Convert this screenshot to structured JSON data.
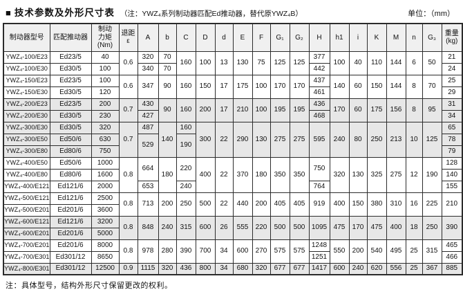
{
  "colors": {
    "border": "#2b2b2b",
    "header_bg": "#f0f0f0",
    "row_shade": "#e7e7e7",
    "text": "#111111",
    "page_bg": "#ffffff"
  },
  "header": {
    "bullet": "■",
    "title": "技术参数及外形尺寸表",
    "note": "（注：YWZ₄系列制动器匹配Ed推动器，替代原YWZ₄B）",
    "unit": "单位：（mm）"
  },
  "table": {
    "columns": [
      "制动器型号",
      "匹配推动器",
      "制动\n力矩\n(Nm)",
      "退距\nε",
      "A",
      "b",
      "C",
      "D",
      "d",
      "E",
      "F",
      "G₁",
      "G₂",
      "H",
      "h1",
      "i",
      "K",
      "M",
      "n",
      "G₃",
      "重量\n(kg)"
    ],
    "rows": [
      {
        "shaded": false,
        "cells": [
          "YWZ₄-100/E23",
          "Ed23/5",
          "40",
          {
            "v": "0.6",
            "rs": 2
          },
          "320",
          "70",
          {
            "v": "160",
            "rs": 2
          },
          {
            "v": "100",
            "rs": 2
          },
          {
            "v": "13",
            "rs": 2
          },
          {
            "v": "130",
            "rs": 2
          },
          {
            "v": "75",
            "rs": 2
          },
          {
            "v": "125",
            "rs": 2
          },
          {
            "v": "125",
            "rs": 2
          },
          "377",
          {
            "v": "100",
            "rs": 2
          },
          {
            "v": "40",
            "rs": 2
          },
          {
            "v": "110",
            "rs": 2
          },
          {
            "v": "144",
            "rs": 2
          },
          {
            "v": "6",
            "rs": 2
          },
          {
            "v": "50",
            "rs": 2
          },
          "21"
        ]
      },
      {
        "shaded": false,
        "cells": [
          "YWZ₄-100/E30",
          "Ed30/5",
          "100",
          "340",
          "70",
          "442",
          "24"
        ]
      },
      {
        "shaded": false,
        "cells": [
          "YWZ₄-150/E23",
          "Ed23/5",
          "100",
          {
            "v": "0.6",
            "rs": 2
          },
          {
            "v": "347",
            "rs": 2
          },
          {
            "v": "90",
            "rs": 2
          },
          {
            "v": "160",
            "rs": 2
          },
          {
            "v": "150",
            "rs": 2
          },
          {
            "v": "17",
            "rs": 2
          },
          {
            "v": "175",
            "rs": 2
          },
          {
            "v": "100",
            "rs": 2
          },
          {
            "v": "170",
            "rs": 2
          },
          {
            "v": "170",
            "rs": 2
          },
          "437",
          {
            "v": "140",
            "rs": 2
          },
          {
            "v": "60",
            "rs": 2
          },
          {
            "v": "150",
            "rs": 2
          },
          {
            "v": "144",
            "rs": 2
          },
          {
            "v": "8",
            "rs": 2
          },
          {
            "v": "70",
            "rs": 2
          },
          "25"
        ]
      },
      {
        "shaded": false,
        "cells": [
          "YWZ₄-150/E30",
          "Ed30/5",
          "120",
          "461",
          "29"
        ]
      },
      {
        "shaded": true,
        "cells": [
          "YWZ₄-200/E23",
          "Ed23/5",
          "200",
          {
            "v": "0.7",
            "rs": 2
          },
          "430",
          {
            "v": "90",
            "rs": 2
          },
          {
            "v": "160",
            "rs": 2
          },
          {
            "v": "200",
            "rs": 2
          },
          {
            "v": "17",
            "rs": 2
          },
          {
            "v": "210",
            "rs": 2
          },
          {
            "v": "100",
            "rs": 2
          },
          {
            "v": "195",
            "rs": 2
          },
          {
            "v": "195",
            "rs": 2
          },
          "436",
          {
            "v": "170",
            "rs": 2
          },
          {
            "v": "60",
            "rs": 2
          },
          {
            "v": "175",
            "rs": 2
          },
          {
            "v": "156",
            "rs": 2
          },
          {
            "v": "8",
            "rs": 2
          },
          {
            "v": "95",
            "rs": 2
          },
          "31"
        ]
      },
      {
        "shaded": true,
        "cells": [
          "YWZ₄-200/E30",
          "Ed30/5",
          "230",
          "427",
          "468",
          "34"
        ]
      },
      {
        "shaded": true,
        "cells": [
          "YWZ₄-300/E30",
          "Ed30/5",
          "320",
          {
            "v": "0.7",
            "rs": 3
          },
          "487",
          {
            "v": "140",
            "rs": 3
          },
          "160",
          {
            "v": "300",
            "rs": 3
          },
          {
            "v": "22",
            "rs": 3
          },
          {
            "v": "290",
            "rs": 3
          },
          {
            "v": "130",
            "rs": 3
          },
          {
            "v": "275",
            "rs": 3
          },
          {
            "v": "275",
            "rs": 3
          },
          {
            "v": "595",
            "rs": 3
          },
          {
            "v": "240",
            "rs": 3
          },
          {
            "v": "80",
            "rs": 3
          },
          {
            "v": "250",
            "rs": 3
          },
          {
            "v": "213",
            "rs": 3
          },
          {
            "v": "10",
            "rs": 3
          },
          {
            "v": "125",
            "rs": 3
          },
          "65"
        ]
      },
      {
        "shaded": true,
        "cells": [
          "YWZ₄-300/E50",
          "Ed50/6",
          "630",
          {
            "v": "529",
            "rs": 2
          },
          {
            "v": "190",
            "rs": 2
          },
          "78"
        ]
      },
      {
        "shaded": true,
        "cells": [
          "YWZ₄-300/E80",
          "Ed80/6",
          "750",
          "79"
        ]
      },
      {
        "shaded": false,
        "cells": [
          "YWZ₄-400/E50",
          "Ed50/6",
          "1000",
          {
            "v": "0.8",
            "rs": 3
          },
          {
            "v": "664",
            "rs": 2
          },
          {
            "v": "180",
            "rs": 3
          },
          {
            "v": "220",
            "rs": 2
          },
          {
            "v": "400",
            "rs": 3
          },
          {
            "v": "22",
            "rs": 3
          },
          {
            "v": "370",
            "rs": 3
          },
          {
            "v": "180",
            "rs": 3
          },
          {
            "v": "350",
            "rs": 3
          },
          {
            "v": "350",
            "rs": 3
          },
          {
            "v": "750",
            "rs": 2
          },
          {
            "v": "320",
            "rs": 3
          },
          {
            "v": "130",
            "rs": 3
          },
          {
            "v": "325",
            "rs": 3
          },
          {
            "v": "275",
            "rs": 3
          },
          {
            "v": "12",
            "rs": 3
          },
          {
            "v": "190",
            "rs": 3
          },
          "128"
        ]
      },
      {
        "shaded": false,
        "cells": [
          "YWZ₄-400/E80",
          "Ed80/6",
          "1600",
          "140"
        ]
      },
      {
        "shaded": false,
        "cells": [
          "YWZ₄-400/E121",
          "Ed121/6",
          "2000",
          "653",
          "240",
          "764",
          "155"
        ]
      },
      {
        "shaded": false,
        "cells": [
          "YWZ₄-500/E121",
          "Ed121/6",
          "2500",
          {
            "v": "0.8",
            "rs": 2
          },
          {
            "v": "713",
            "rs": 2
          },
          {
            "v": "200",
            "rs": 2
          },
          {
            "v": "250",
            "rs": 2
          },
          {
            "v": "500",
            "rs": 2
          },
          {
            "v": "22",
            "rs": 2
          },
          {
            "v": "440",
            "rs": 2
          },
          {
            "v": "200",
            "rs": 2
          },
          {
            "v": "405",
            "rs": 2
          },
          {
            "v": "405",
            "rs": 2
          },
          {
            "v": "919",
            "rs": 2
          },
          {
            "v": "400",
            "rs": 2
          },
          {
            "v": "150",
            "rs": 2
          },
          {
            "v": "380",
            "rs": 2
          },
          {
            "v": "310",
            "rs": 2
          },
          {
            "v": "16",
            "rs": 2
          },
          {
            "v": "225",
            "rs": 2
          },
          {
            "v": "210",
            "rs": 2
          }
        ]
      },
      {
        "shaded": false,
        "cells": [
          "YWZ₄-500/E201",
          "Ed201/6",
          "3600"
        ]
      },
      {
        "shaded": true,
        "cells": [
          "YWZ₄-600/E121",
          "Ed121/6",
          "3200",
          {
            "v": "0.8",
            "rs": 2
          },
          {
            "v": "848",
            "rs": 2
          },
          {
            "v": "240",
            "rs": 2
          },
          {
            "v": "315",
            "rs": 2
          },
          {
            "v": "600",
            "rs": 2
          },
          {
            "v": "26",
            "rs": 2
          },
          {
            "v": "555",
            "rs": 2
          },
          {
            "v": "220",
            "rs": 2
          },
          {
            "v": "500",
            "rs": 2
          },
          {
            "v": "500",
            "rs": 2
          },
          {
            "v": "1095",
            "rs": 2
          },
          {
            "v": "475",
            "rs": 2
          },
          {
            "v": "170",
            "rs": 2
          },
          {
            "v": "475",
            "rs": 2
          },
          {
            "v": "400",
            "rs": 2
          },
          {
            "v": "18",
            "rs": 2
          },
          {
            "v": "250",
            "rs": 2
          },
          {
            "v": "390",
            "rs": 2
          }
        ]
      },
      {
        "shaded": true,
        "cells": [
          "YWZ₄-600/E201",
          "Ed201/6",
          "5000"
        ]
      },
      {
        "shaded": false,
        "cells": [
          "YWZ₄-700/E201",
          "Ed201/6",
          "8000",
          {
            "v": "0.8",
            "rs": 2
          },
          {
            "v": "978",
            "rs": 2
          },
          {
            "v": "280",
            "rs": 2
          },
          {
            "v": "390",
            "rs": 2
          },
          {
            "v": "700",
            "rs": 2
          },
          {
            "v": "34",
            "rs": 2
          },
          {
            "v": "600",
            "rs": 2
          },
          {
            "v": "270",
            "rs": 2
          },
          {
            "v": "575",
            "rs": 2
          },
          {
            "v": "575",
            "rs": 2
          },
          "1248",
          {
            "v": "550",
            "rs": 2
          },
          {
            "v": "200",
            "rs": 2
          },
          {
            "v": "540",
            "rs": 2
          },
          {
            "v": "495",
            "rs": 2
          },
          {
            "v": "25",
            "rs": 2
          },
          {
            "v": "315",
            "rs": 2
          },
          "465"
        ]
      },
      {
        "shaded": false,
        "cells": [
          "YWZ₄-700/E301",
          "Ed301/12",
          "8650",
          "1251",
          "466"
        ]
      },
      {
        "shaded": true,
        "cells": [
          "YWZ₄-800/E301",
          "Ed301/12",
          "12500",
          "0.9",
          "1115",
          "320",
          "436",
          "800",
          "34",
          "680",
          "320",
          "677",
          "677",
          "1417",
          "600",
          "240",
          "620",
          "556",
          "25",
          "367",
          "885"
        ]
      }
    ]
  },
  "footer": {
    "note": "注：具体型号，结构外形尺寸保留更改的权利。"
  }
}
